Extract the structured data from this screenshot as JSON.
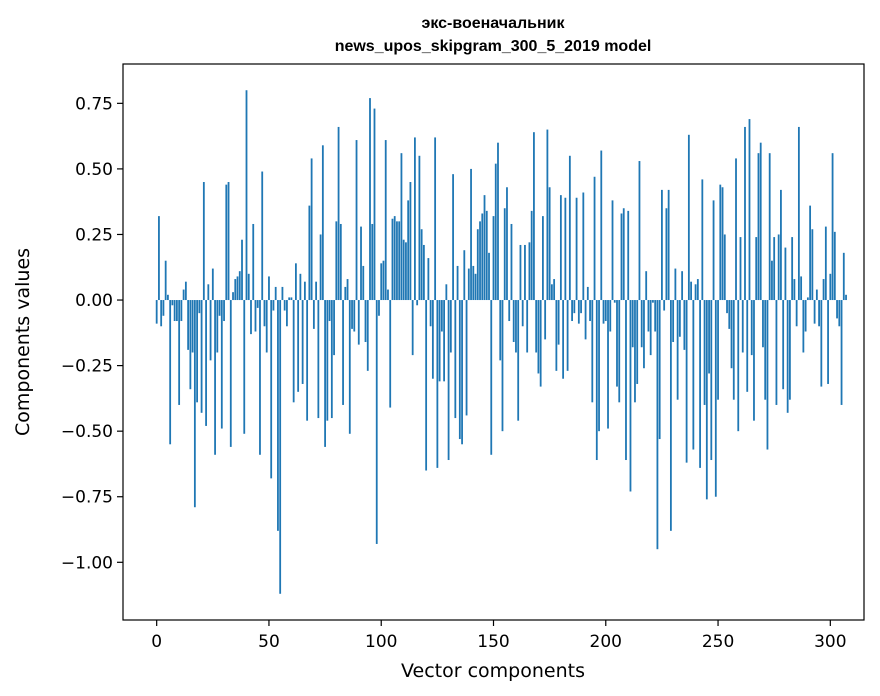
{
  "chart_data": {
    "type": "bar",
    "title_line1": "экс-военачальник",
    "title_line2": "news_upos_skipgram_300_5_2019 model",
    "xlabel": "Vector components",
    "ylabel": "Components values",
    "xlim": [
      -15,
      315
    ],
    "ylim": [
      -1.22,
      0.9
    ],
    "x_ticks": [
      0,
      50,
      100,
      150,
      200,
      250,
      300
    ],
    "y_ticks": [
      -1.0,
      -0.75,
      -0.5,
      -0.25,
      0.0,
      0.25,
      0.5,
      0.75
    ],
    "x_tick_labels": [
      "0",
      "50",
      "100",
      "150",
      "200",
      "250",
      "300"
    ],
    "y_tick_labels": [
      "−1.00",
      "−0.75",
      "−0.50",
      "−0.25",
      "0.00",
      "0.25",
      "0.50",
      "0.75"
    ],
    "bar_color": "#1f77b4",
    "values": [
      -0.09,
      0.32,
      -0.1,
      -0.06,
      0.15,
      0.02,
      -0.55,
      -0.02,
      -0.08,
      -0.08,
      -0.4,
      -0.08,
      0.04,
      0.07,
      -0.19,
      -0.34,
      -0.2,
      -0.79,
      -0.39,
      -0.05,
      -0.43,
      0.45,
      -0.48,
      0.06,
      -0.23,
      0.12,
      -0.59,
      -0.2,
      -0.06,
      -0.49,
      -0.08,
      0.44,
      0.45,
      -0.56,
      0.03,
      0.08,
      0.09,
      0.11,
      0.23,
      -0.51,
      0.8,
      0.1,
      -0.13,
      0.29,
      -0.12,
      -0.03,
      -0.59,
      0.49,
      -0.1,
      -0.2,
      0.09,
      -0.68,
      -0.04,
      0.05,
      -0.88,
      -1.12,
      0.05,
      -0.04,
      -0.1,
      0.01,
      0.01,
      -0.39,
      0.14,
      -0.35,
      0.1,
      -0.32,
      0.07,
      -0.46,
      0.36,
      0.54,
      -0.11,
      0.07,
      -0.45,
      0.25,
      0.59,
      -0.56,
      -0.46,
      -0.08,
      -0.45,
      -0.21,
      0.3,
      0.66,
      0.29,
      -0.4,
      0.05,
      0.08,
      -0.51,
      -0.11,
      -0.12,
      0.61,
      -0.17,
      0.28,
      0.13,
      -0.16,
      -0.27,
      0.77,
      0.29,
      0.73,
      -0.93,
      -0.06,
      0.14,
      0.15,
      0.61,
      0.04,
      -0.41,
      0.31,
      0.32,
      0.3,
      0.3,
      0.56,
      0.23,
      0.22,
      0.38,
      0.45,
      -0.21,
      0.62,
      -0.02,
      0.55,
      0.27,
      0.21,
      -0.65,
      0.16,
      -0.1,
      -0.3,
      0.62,
      -0.64,
      -0.31,
      -0.12,
      -0.31,
      0.06,
      -0.61,
      -0.2,
      0.48,
      -0.45,
      0.13,
      -0.53,
      -0.55,
      0.19,
      -0.44,
      0.12,
      0.5,
      0.13,
      0.1,
      0.27,
      0.3,
      0.33,
      0.4,
      0.34,
      0.18,
      -0.59,
      0.32,
      0.52,
      0.6,
      -0.23,
      -0.5,
      0.35,
      0.43,
      -0.08,
      0.29,
      -0.16,
      -0.2,
      -0.46,
      0.21,
      -0.1,
      0.21,
      -0.2,
      0.22,
      0.34,
      0.64,
      -0.2,
      -0.28,
      -0.33,
      0.32,
      -0.15,
      0.65,
      0.43,
      0.06,
      0.08,
      -0.27,
      -0.17,
      0.4,
      -0.3,
      0.39,
      -0.27,
      0.55,
      -0.08,
      -0.05,
      0.39,
      -0.09,
      -0.05,
      0.41,
      -0.15,
      0.05,
      -0.08,
      -0.39,
      0.47,
      -0.61,
      -0.5,
      0.57,
      -0.09,
      -0.08,
      -0.49,
      -0.12,
      0.38,
      -0.01,
      -0.33,
      -0.39,
      0.33,
      0.35,
      -0.61,
      0.34,
      -0.73,
      -0.18,
      -0.39,
      -0.32,
      0.53,
      -0.18,
      -0.26,
      0.11,
      -0.12,
      -0.21,
      -0.01,
      -0.12,
      -0.95,
      -0.53,
      0.42,
      -0.04,
      0.35,
      0.42,
      -0.88,
      -0.16,
      0.12,
      -0.38,
      -0.14,
      0.11,
      -0.19,
      -0.62,
      0.63,
      0.07,
      -0.57,
      0.06,
      0.08,
      -0.64,
      0.46,
      -0.4,
      -0.76,
      -0.28,
      -0.61,
      0.38,
      -0.75,
      -0.38,
      0.44,
      0.43,
      0.25,
      -0.05,
      -0.11,
      -0.26,
      -0.38,
      0.54,
      -0.5,
      0.24,
      -0.2,
      0.66,
      -0.35,
      0.69,
      -0.21,
      -0.46,
      0.24,
      0.56,
      0.6,
      -0.18,
      -0.38,
      -0.57,
      0.56,
      0.15,
      0.24,
      -0.4,
      0.25,
      0.42,
      -0.34,
      0.2,
      -0.43,
      -0.38,
      0.24,
      0.08,
      -0.1,
      0.66,
      0.09,
      -0.2,
      -0.12,
      0.01,
      0.36,
      0.27,
      -0.09,
      0.04,
      -0.1,
      -0.33,
      0.08,
      0.28,
      -0.32,
      0.1,
      0.56,
      0.26,
      -0.07,
      -0.1,
      -0.4,
      0.18,
      0.02
    ]
  }
}
